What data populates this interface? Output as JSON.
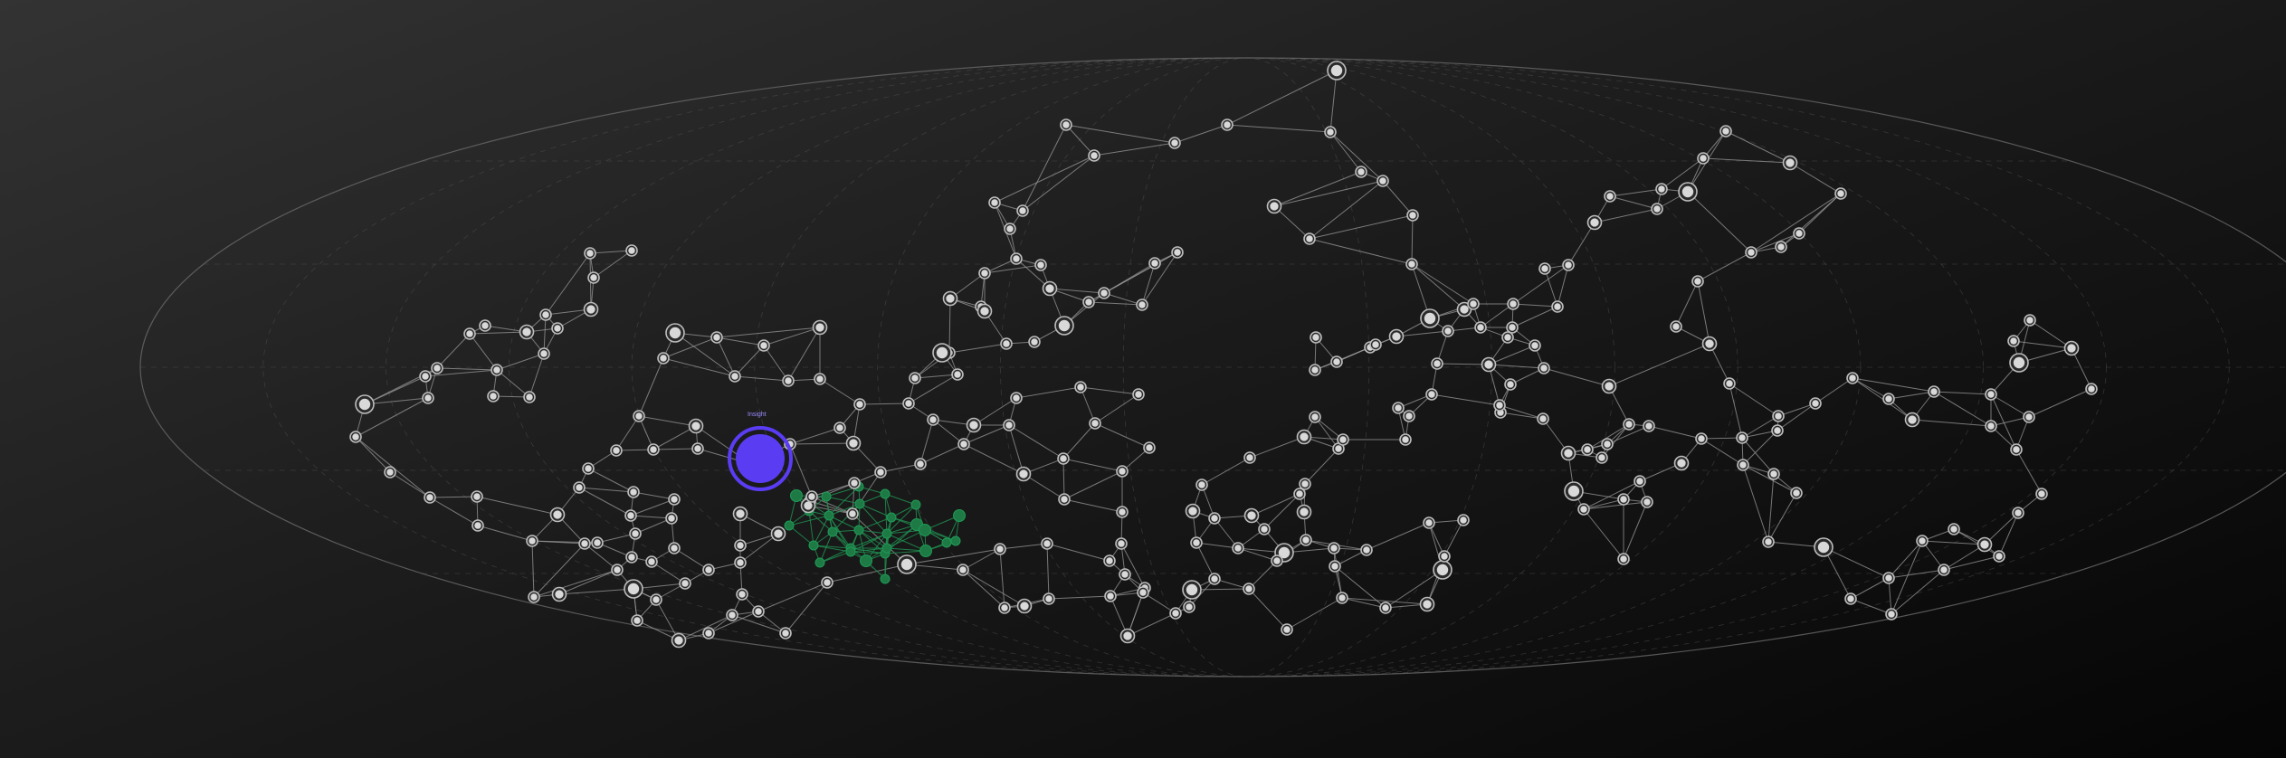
{
  "graph": {
    "focus_label": "Insight",
    "colors": {
      "focus": "#5a3df2",
      "cluster": "#1e7a45",
      "node": "#d9d9d9",
      "edge": "#9a9a9a"
    }
  }
}
